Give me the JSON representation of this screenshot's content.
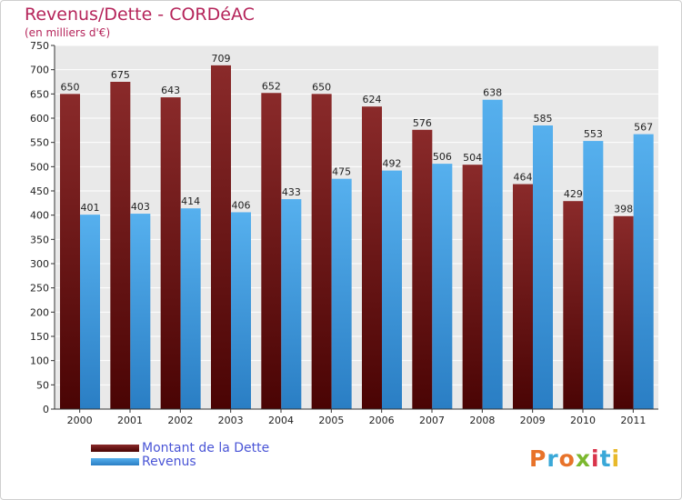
{
  "chart_data": {
    "type": "bar",
    "title": "Revenus/Dette - CORDéAC",
    "subtitle": "(en milliers d'€)",
    "categories": [
      "2000",
      "2001",
      "2002",
      "2003",
      "2004",
      "2005",
      "2006",
      "2007",
      "2008",
      "2009",
      "2010",
      "2011"
    ],
    "series": [
      {
        "name": "Montant de la Dette",
        "color": "#7a1a1c",
        "values": [
          650,
          675,
          643,
          709,
          652,
          650,
          624,
          576,
          504,
          464,
          429,
          398
        ]
      },
      {
        "name": "Revenus",
        "color": "#4aa3e4",
        "values": [
          401,
          403,
          414,
          406,
          433,
          475,
          492,
          506,
          638,
          585,
          553,
          567
        ]
      }
    ],
    "ylim": [
      0,
      750
    ],
    "yticks": [
      0,
      50,
      100,
      150,
      200,
      250,
      300,
      350,
      400,
      450,
      500,
      550,
      600,
      650,
      700,
      750
    ],
    "grid": true,
    "legend_position": "bottom-left",
    "colors": {
      "title": "#b5245a",
      "legend_text": "#4a55d6",
      "plot_background": "#e9e9e9",
      "grid": "#ffffff"
    }
  },
  "logo": {
    "text": "Proxiti",
    "colors": [
      "#e8732a",
      "#3aa8d8",
      "#e8732a",
      "#7cb82f",
      "#d9334a",
      "#3aa8d8",
      "#e8b92a"
    ]
  }
}
